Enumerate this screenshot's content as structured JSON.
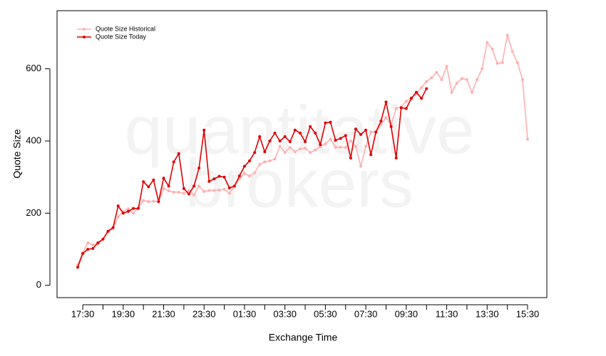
{
  "chart_data": {
    "type": "line",
    "watermark": [
      "quantitative",
      "brokers"
    ],
    "x_label": "Exchange Time",
    "y_label": "Quote Size",
    "categories": [
      null,
      "17:30",
      null,
      null,
      null,
      null,
      null,
      null,
      null,
      "19:30",
      null,
      null,
      null,
      null,
      null,
      null,
      null,
      "21:30",
      null,
      null,
      null,
      null,
      null,
      null,
      null,
      "23:30",
      null,
      null,
      null,
      null,
      null,
      null,
      null,
      "01:30",
      null,
      null,
      null,
      null,
      null,
      null,
      null,
      "03:30",
      null,
      null,
      null,
      null,
      null,
      null,
      null,
      "05:30",
      null,
      null,
      null,
      null,
      null,
      null,
      null,
      "07:30",
      null,
      null,
      null,
      null,
      null,
      null,
      null,
      "09:30",
      null,
      null,
      null,
      null,
      null,
      null,
      null,
      "11:30",
      null,
      null,
      null,
      null,
      null,
      null,
      null,
      "13:30",
      null,
      null,
      null,
      null,
      null,
      null,
      null,
      "15:30"
    ],
    "ylim": [
      -34,
      761
    ],
    "yticks": [
      0,
      200,
      400,
      600
    ],
    "legend": "top-left",
    "series": [
      {
        "name": "Quote Size Historical",
        "color": "#ffb0b0",
        "values": [
          57,
          90,
          118,
          112,
          115,
          128,
          148,
          158,
          190,
          205,
          212,
          200,
          215,
          235,
          232,
          233,
          232,
          268,
          262,
          258,
          258,
          255,
          262,
          250,
          275,
          260,
          263,
          263,
          264,
          266,
          255,
          275,
          295,
          310,
          303,
          312,
          335,
          342,
          345,
          350,
          385,
          368,
          382,
          370,
          378,
          380,
          368,
          375,
          385,
          392,
          405,
          383,
          383,
          382,
          400,
          385,
          330,
          385,
          425,
          425,
          445,
          465,
          445,
          490,
          495,
          510,
          520,
          530,
          548,
          565,
          575,
          590,
          570,
          607,
          535,
          560,
          573,
          570,
          535,
          570,
          600,
          673,
          655,
          615,
          617,
          693,
          648,
          617,
          570,
          405
        ]
      },
      {
        "name": "Quote Size Today",
        "color": "#e00000",
        "values": [
          50,
          88,
          100,
          102,
          118,
          128,
          150,
          160,
          220,
          200,
          205,
          213,
          213,
          287,
          273,
          292,
          232,
          297,
          275,
          342,
          365,
          268,
          253,
          275,
          325,
          430,
          288,
          295,
          302,
          300,
          270,
          275,
          303,
          330,
          345,
          368,
          412,
          370,
          400,
          422,
          400,
          412,
          398,
          430,
          422,
          398,
          440,
          422,
          390,
          450,
          452,
          402,
          407,
          415,
          353,
          433,
          418,
          430,
          362,
          425,
          455,
          508,
          440,
          353,
          492,
          490,
          518,
          535,
          518,
          545,
          null,
          null,
          null,
          null,
          null,
          null,
          null,
          null,
          null,
          null,
          null,
          null,
          null,
          null,
          null,
          null,
          null,
          null,
          null,
          null
        ]
      }
    ]
  }
}
